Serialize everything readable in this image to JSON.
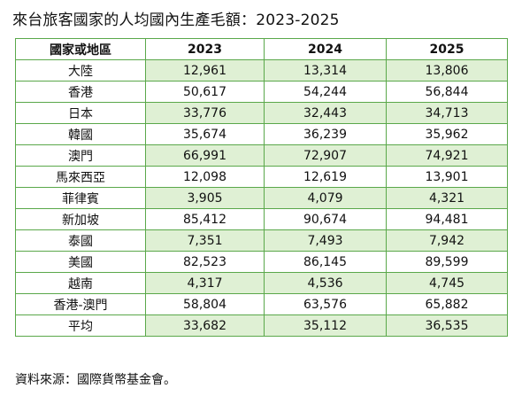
{
  "title": "來台旅客國家的人均國內生產毛額：2023-2025",
  "table": {
    "headers": [
      "國家或地區",
      "2023",
      "2024",
      "2025"
    ],
    "rows": [
      {
        "region": "大陸",
        "v2023": "12,961",
        "v2024": "13,314",
        "v2025": "13,806"
      },
      {
        "region": "香港",
        "v2023": "50,617",
        "v2024": "54,244",
        "v2025": "56,844"
      },
      {
        "region": "日本",
        "v2023": "33,776",
        "v2024": "32,443",
        "v2025": "34,713"
      },
      {
        "region": "韓國",
        "v2023": "35,674",
        "v2024": "36,239",
        "v2025": "35,962"
      },
      {
        "region": "澳門",
        "v2023": "66,991",
        "v2024": "72,907",
        "v2025": "74,921"
      },
      {
        "region": "馬來西亞",
        "v2023": "12,098",
        "v2024": "12,619",
        "v2025": "13,901"
      },
      {
        "region": "菲律賓",
        "v2023": "3,905",
        "v2024": "4,079",
        "v2025": "4,321"
      },
      {
        "region": "新加坡",
        "v2023": "85,412",
        "v2024": "90,674",
        "v2025": "94,481"
      },
      {
        "region": "泰國",
        "v2023": "7,351",
        "v2024": "7,493",
        "v2025": "7,942"
      },
      {
        "region": "美國",
        "v2023": "82,523",
        "v2024": "86,145",
        "v2025": "89,599"
      },
      {
        "region": "越南",
        "v2023": "4,317",
        "v2024": "4,536",
        "v2025": "4,745"
      },
      {
        "region": "香港-澳門",
        "v2023": "58,804",
        "v2024": "63,576",
        "v2025": "65,882"
      },
      {
        "region": "平均",
        "v2023": "33,682",
        "v2024": "35,112",
        "v2025": "36,535"
      }
    ]
  },
  "source": "資料來源：國際貨幣基金會。",
  "colors": {
    "border": "#5aa84a",
    "band": "#dff0d4",
    "text": "#111111"
  }
}
